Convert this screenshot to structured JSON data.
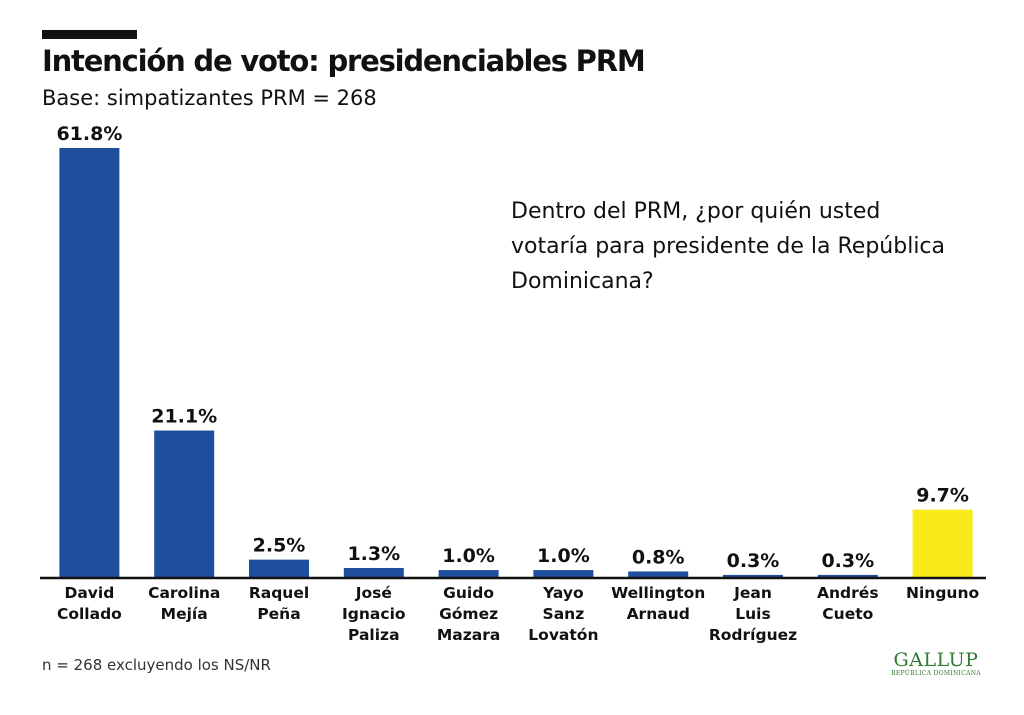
{
  "chart_data": {
    "type": "bar",
    "title": "Intención de voto: presidenciables PRM",
    "subtitle": "Base: simpatizantes PRM = 268",
    "annotation": "Dentro del PRM, ¿por quién usted votaría para presidente de la República Dominicana?",
    "categories": [
      [
        "David",
        "Collado"
      ],
      [
        "Carolina",
        "Mejía"
      ],
      [
        "Raquel",
        "Peña"
      ],
      [
        "José",
        "Ignacio",
        "Paliza"
      ],
      [
        "Guido",
        "Gómez",
        "Mazara"
      ],
      [
        "Yayo",
        "Sanz",
        "Lovatón"
      ],
      [
        "Wellington",
        "Arnaud"
      ],
      [
        "Jean",
        "Luis",
        "Rodríguez"
      ],
      [
        "Andrés",
        "Cueto"
      ],
      [
        "Ninguno"
      ]
    ],
    "values": [
      61.8,
      21.1,
      2.5,
      1.3,
      1.0,
      1.0,
      0.8,
      0.3,
      0.3,
      9.7
    ],
    "value_labels": [
      "61.8%",
      "21.1%",
      "2.5%",
      "1.3%",
      "1.0%",
      "1.0%",
      "0.8%",
      "0.3%",
      "0.3%",
      "9.7%"
    ],
    "bar_colors": [
      "#1f4e9c",
      "#1f4e9c",
      "#1f4e9c",
      "#1f4e9c",
      "#1f4e9c",
      "#1f4e9c",
      "#1f4e9c",
      "#1f4e9c",
      "#1f4e9c",
      "#f7ea18"
    ],
    "ylim": [
      0,
      61.8
    ],
    "grid": false,
    "legend": "none",
    "xlabel": "",
    "ylabel": ""
  },
  "footnote": "n = 268 excluyendo los NS/NR",
  "logo": {
    "name": "GALLUP",
    "subtitle": "REPÚBLICA DOMINICANA"
  },
  "colors": {
    "bar_primary": "#1f4e9c",
    "bar_highlight": "#f7ea18",
    "text": "#111111",
    "logo": "#2f7a2f"
  }
}
